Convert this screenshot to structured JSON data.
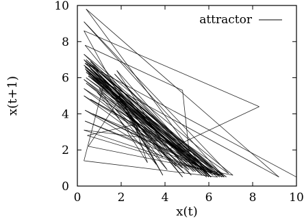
{
  "chart_data": {
    "type": "line",
    "title": "",
    "xlabel": "x(t)",
    "ylabel": "x(t+1)",
    "xlim": [
      0,
      10
    ],
    "ylim": [
      0,
      10
    ],
    "xticks": [
      0,
      2,
      4,
      6,
      8,
      10
    ],
    "yticks": [
      0,
      2,
      4,
      6,
      8,
      10
    ],
    "grid": false,
    "legend_position": "top-right",
    "series": [
      {
        "name": "attractor",
        "color": "#000000",
        "points": [
          [
            0.35,
            6.8
          ],
          [
            6.3,
            0.6
          ],
          [
            0.5,
            6.1
          ],
          [
            5.8,
            0.8
          ],
          [
            0.4,
            7.0
          ],
          [
            6.6,
            0.5
          ],
          [
            0.3,
            5.4
          ],
          [
            5.1,
            0.9
          ],
          [
            0.6,
            6.5
          ],
          [
            6.2,
            0.7
          ],
          [
            0.35,
            4.2
          ],
          [
            3.9,
            1.6
          ],
          [
            1.2,
            5.9
          ],
          [
            5.7,
            0.6
          ],
          [
            0.4,
            6.9
          ],
          [
            6.7,
            0.5
          ],
          [
            0.3,
            3.1
          ],
          [
            2.9,
            2.7
          ],
          [
            2.4,
            3.8
          ],
          [
            3.6,
            1.2
          ],
          [
            0.9,
            5.2
          ],
          [
            4.9,
            0.7
          ],
          [
            0.45,
            6.4
          ],
          [
            6.1,
            0.5
          ],
          [
            0.3,
            7.3
          ],
          [
            7.1,
            0.6
          ],
          [
            0.5,
            2.2
          ],
          [
            1.8,
            4.6
          ],
          [
            4.5,
            1.1
          ],
          [
            0.8,
            6.0
          ],
          [
            5.9,
            0.6
          ],
          [
            0.35,
            6.6
          ],
          [
            6.4,
            0.5
          ],
          [
            0.3,
            1.4
          ],
          [
            1.2,
            5.6
          ],
          [
            5.3,
            0.8
          ],
          [
            0.5,
            6.2
          ],
          [
            6.0,
            0.6
          ],
          [
            0.4,
            9.8
          ],
          [
            9.2,
            0.5
          ],
          [
            0.4,
            6.3
          ],
          [
            6.2,
            1.0
          ],
          [
            0.6,
            4.8
          ],
          [
            4.6,
            2.0
          ],
          [
            1.7,
            4.3
          ],
          [
            4.1,
            0.9
          ],
          [
            0.7,
            6.7
          ],
          [
            6.5,
            0.5
          ],
          [
            0.3,
            5.9
          ],
          [
            5.6,
            0.7
          ],
          [
            0.5,
            6.8
          ],
          [
            6.6,
            0.6
          ],
          [
            0.35,
            3.6
          ],
          [
            3.3,
            2.1
          ],
          [
            1.9,
            5.0
          ],
          [
            4.8,
            0.5
          ],
          [
            0.3,
            7.0
          ],
          [
            6.8,
            0.5
          ],
          [
            0.4,
            6.0
          ],
          [
            5.8,
            1.0
          ],
          [
            0.7,
            4.0
          ],
          [
            3.8,
            2.4
          ],
          [
            2.2,
            4.1
          ],
          [
            3.9,
            0.6
          ],
          [
            0.3,
            8.6
          ],
          [
            8.3,
            4.4
          ],
          [
            4.1,
            2.0
          ],
          [
            1.8,
            6.4
          ],
          [
            6.1,
            0.5
          ],
          [
            0.35,
            6.5
          ],
          [
            6.3,
            0.6
          ],
          [
            0.4,
            5.7
          ],
          [
            5.4,
            0.8
          ],
          [
            0.6,
            6.9
          ],
          [
            6.7,
            0.5
          ],
          [
            0.3,
            9.1
          ],
          [
            6.9,
            0.7
          ],
          [
            0.5,
            6.1
          ],
          [
            5.9,
            0.5
          ],
          [
            0.3,
            6.7
          ],
          [
            6.5,
            0.6
          ],
          [
            0.45,
            2.8
          ],
          [
            2.6,
            3.4
          ],
          [
            3.2,
            1.3
          ],
          [
            1.0,
            5.4
          ],
          [
            5.2,
            0.6
          ],
          [
            0.35,
            7.8
          ],
          [
            4.8,
            5.3
          ],
          [
            5.1,
            1.9
          ],
          [
            1.7,
            6.2
          ],
          [
            6.0,
            0.5
          ],
          [
            0.4,
            6.4
          ],
          [
            6.2,
            0.6
          ],
          [
            0.3,
            5.0
          ],
          [
            4.8,
            1.0
          ],
          [
            0.8,
            6.3
          ],
          [
            6.1,
            0.5
          ],
          [
            0.35,
            6.8
          ],
          [
            10.0,
            0.5
          ]
        ]
      }
    ]
  }
}
